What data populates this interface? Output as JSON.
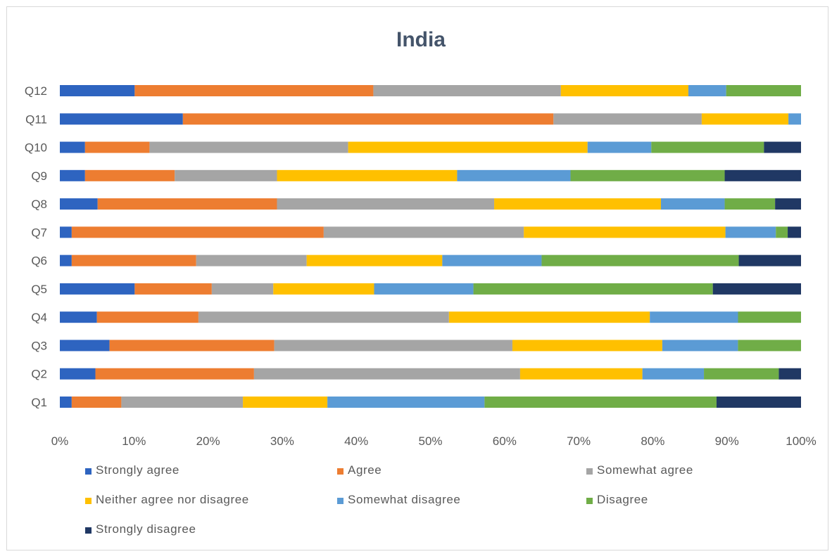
{
  "chart_data": {
    "type": "bar",
    "orientation": "horizontal",
    "stacked": "percent",
    "title": "India",
    "categories": [
      "Q1",
      "Q2",
      "Q3",
      "Q4",
      "Q5",
      "Q6",
      "Q7",
      "Q8",
      "Q9",
      "Q10",
      "Q11",
      "Q12"
    ],
    "series": [
      {
        "name": "Strongly agree",
        "color": "#2e64c0",
        "values": [
          1.6,
          4.8,
          6.7,
          5.0,
          10.1,
          1.6,
          1.6,
          5.1,
          3.4,
          3.4,
          16.6,
          10.1
        ]
      },
      {
        "name": "Agree",
        "color": "#ed7d31",
        "values": [
          6.7,
          21.4,
          22.2,
          13.7,
          10.4,
          16.8,
          34.0,
          24.2,
          12.1,
          8.7,
          50.0,
          32.2
        ]
      },
      {
        "name": "Somewhat agree",
        "color": "#a5a5a5",
        "values": [
          16.4,
          35.9,
          32.1,
          33.8,
          8.3,
          14.9,
          27.0,
          29.3,
          13.8,
          26.8,
          20.0,
          25.3
        ]
      },
      {
        "name": "Neither agree nor disagree",
        "color": "#ffc000",
        "values": [
          11.4,
          16.5,
          20.2,
          27.1,
          13.6,
          18.3,
          27.2,
          22.5,
          24.3,
          32.3,
          11.7,
          17.2
        ]
      },
      {
        "name": "Somewhat disagree",
        "color": "#5b9bd5",
        "values": [
          21.2,
          8.3,
          10.2,
          11.9,
          13.4,
          13.4,
          6.8,
          8.6,
          15.3,
          8.6,
          1.7,
          5.1
        ]
      },
      {
        "name": "Disagree",
        "color": "#70ad47",
        "values": [
          31.3,
          10.1,
          8.5,
          8.5,
          32.3,
          26.6,
          1.6,
          6.8,
          20.8,
          15.2,
          0.0,
          10.1
        ]
      },
      {
        "name": "Strongly disagree",
        "color": "#203864",
        "values": [
          11.4,
          3.0,
          0.0,
          0.0,
          11.9,
          8.4,
          1.8,
          3.5,
          10.3,
          5.0,
          0.0,
          0.0
        ]
      }
    ],
    "xaxis": {
      "ticks": [
        "0%",
        "10%",
        "20%",
        "30%",
        "40%",
        "50%",
        "60%",
        "70%",
        "80%",
        "90%",
        "100%"
      ],
      "range": [
        0,
        100
      ]
    },
    "grid": false,
    "legend": "bottom"
  }
}
